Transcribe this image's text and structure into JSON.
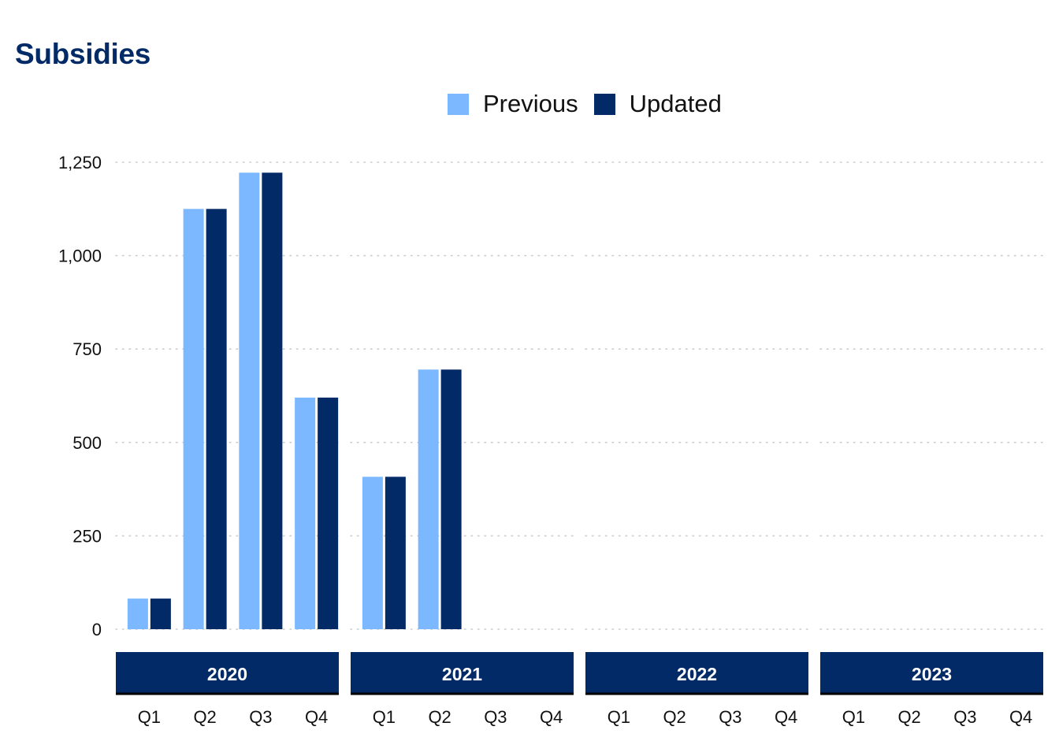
{
  "title": "Subsidies",
  "legend": [
    {
      "label": "Previous",
      "color": "#7cb8ff"
    },
    {
      "label": "Updated",
      "color": "#022a66"
    }
  ],
  "chart_data": {
    "type": "bar",
    "panels": [
      "2020",
      "2021",
      "2022",
      "2023"
    ],
    "categories": [
      "Q1",
      "Q2",
      "Q3",
      "Q4"
    ],
    "series": [
      {
        "name": "Previous",
        "color": "#7cb8ff",
        "values": [
          [
            82,
            1125,
            1222,
            620
          ],
          [
            408,
            695,
            null,
            null
          ],
          [
            null,
            null,
            null,
            null
          ],
          [
            null,
            null,
            null,
            null
          ]
        ]
      },
      {
        "name": "Updated",
        "color": "#022a66",
        "values": [
          [
            82,
            1125,
            1222,
            620
          ],
          [
            408,
            695,
            null,
            null
          ],
          [
            null,
            null,
            null,
            null
          ],
          [
            null,
            null,
            null,
            null
          ]
        ]
      }
    ],
    "yticks": [
      "0",
      "250",
      "500",
      "750",
      "1,000",
      "1,250"
    ],
    "ylim": [
      0,
      1250
    ],
    "grid": true,
    "legend_position": "top"
  }
}
